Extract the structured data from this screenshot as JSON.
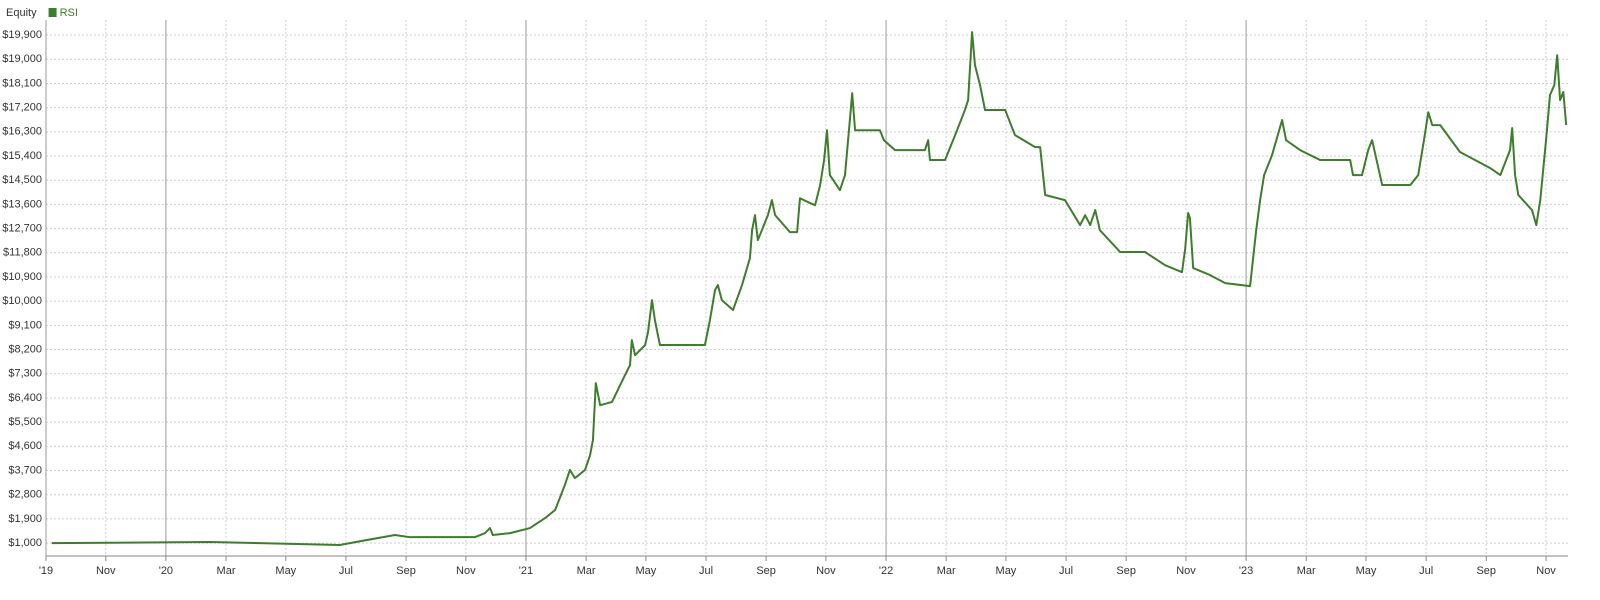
{
  "chart_data": {
    "type": "line",
    "legend_title": "Equity",
    "legend": "top-left",
    "grid": true,
    "x": [
      2019.683,
      2020.122,
      2020.483,
      2020.539,
      2020.636,
      2020.678,
      2020.858,
      2020.886,
      2020.9,
      2020.908,
      2020.956,
      2021.011,
      2021.053,
      2021.081,
      2021.108,
      2021.122,
      2021.136,
      2021.164,
      2021.178,
      2021.186,
      2021.194,
      2021.206,
      2021.239,
      2021.275,
      2021.289,
      2021.294,
      2021.303,
      2021.331,
      2021.339,
      2021.35,
      2021.358,
      2021.372,
      2021.497,
      2021.511,
      2021.525,
      2021.533,
      2021.544,
      2021.575,
      2021.6,
      2021.622,
      2021.628,
      2021.636,
      2021.644,
      2021.672,
      2021.683,
      2021.692,
      2021.733,
      2021.753,
      2021.761,
      2021.789,
      2021.803,
      2021.817,
      2021.828,
      2021.836,
      2021.844,
      2021.872,
      2021.886,
      2021.9,
      2021.906,
      2021.914,
      2021.983,
      2021.994,
      2022.025,
      2022.108,
      2022.117,
      2022.122,
      2022.164,
      2022.192,
      2022.219,
      2022.228,
      2022.239,
      2022.247,
      2022.261,
      2022.275,
      2022.331,
      2022.358,
      2022.414,
      2022.428,
      2022.442,
      2022.497,
      2022.539,
      2022.553,
      2022.567,
      2022.581,
      2022.594,
      2022.65,
      2022.719,
      2022.775,
      2022.822,
      2022.831,
      2022.839,
      2022.844,
      2022.853,
      2022.9,
      2022.942,
      2023.011,
      2023.028,
      2023.039,
      2023.05,
      2023.072,
      2023.1,
      2023.111,
      2023.15,
      2023.206,
      2023.289,
      2023.297,
      2023.322,
      2023.339,
      2023.35,
      2023.378,
      2023.456,
      2023.478,
      2023.494,
      2023.506,
      2023.517,
      2023.539,
      2023.594,
      2023.678,
      2023.706,
      2023.733,
      2023.739,
      2023.747,
      2023.756,
      2023.794,
      2023.806,
      2023.817,
      2023.833,
      2023.844,
      2023.856,
      2023.864,
      2023.872,
      2023.881,
      2023.889
    ],
    "series": [
      {
        "name": "RSI",
        "color": "#3d7d2c",
        "values": [
          1000,
          1040,
          930,
          1070,
          1300,
          1220,
          1220,
          1370,
          1560,
          1300,
          1370,
          1560,
          1930,
          2230,
          3160,
          3720,
          3420,
          3720,
          4270,
          4830,
          6950,
          6130,
          6250,
          7250,
          7620,
          8550,
          7990,
          8370,
          8850,
          10040,
          9300,
          8370,
          8370,
          9300,
          10410,
          10600,
          10040,
          9670,
          10600,
          11600,
          12640,
          13200,
          12270,
          13200,
          13760,
          13200,
          12570,
          12570,
          13830,
          13650,
          13570,
          14320,
          15250,
          16360,
          14690,
          14130,
          14690,
          16810,
          17740,
          16360,
          16360,
          15990,
          15620,
          15620,
          15990,
          15250,
          15250,
          16180,
          17110,
          17480,
          20010,
          18780,
          18040,
          17110,
          17110,
          16180,
          15730,
          15730,
          13950,
          13760,
          12830,
          13200,
          12830,
          13390,
          12640,
          11830,
          11830,
          11340,
          11080,
          11970,
          13280,
          13090,
          11230,
          10970,
          10670,
          10560,
          12640,
          13760,
          14690,
          15430,
          16740,
          15990,
          15620,
          15250,
          15250,
          14690,
          14690,
          15620,
          15990,
          14320,
          14320,
          14690,
          15990,
          17030,
          16550,
          16550,
          15550,
          14950,
          14690,
          15620,
          16440,
          14690,
          13950,
          13390,
          12830,
          13760,
          15990,
          17670,
          18040,
          19150,
          17480,
          17780,
          16550
        ]
      }
    ],
    "xlim": [
      2019.667,
      2023.894
    ],
    "ylim": [
      520,
      20460
    ],
    "xticks": [
      {
        "value": 2019.667,
        "label": "'19"
      },
      {
        "value": 2019.833,
        "label": "Nov"
      },
      {
        "value": 2020,
        "label": "'20"
      },
      {
        "value": 2020.167,
        "label": "Mar"
      },
      {
        "value": 2020.333,
        "label": "May"
      },
      {
        "value": 2020.5,
        "label": "Jul"
      },
      {
        "value": 2020.667,
        "label": "Sep"
      },
      {
        "value": 2020.833,
        "label": "Nov"
      },
      {
        "value": 2021,
        "label": "'21"
      },
      {
        "value": 2021.167,
        "label": "Mar"
      },
      {
        "value": 2021.333,
        "label": "May"
      },
      {
        "value": 2021.5,
        "label": "Jul"
      },
      {
        "value": 2021.667,
        "label": "Sep"
      },
      {
        "value": 2021.833,
        "label": "Nov"
      },
      {
        "value": 2022,
        "label": "'22"
      },
      {
        "value": 2022.167,
        "label": "Mar"
      },
      {
        "value": 2022.333,
        "label": "May"
      },
      {
        "value": 2022.5,
        "label": "Jul"
      },
      {
        "value": 2022.667,
        "label": "Sep"
      },
      {
        "value": 2022.833,
        "label": "Nov"
      },
      {
        "value": 2023,
        "label": "'23"
      },
      {
        "value": 2023.167,
        "label": "Mar"
      },
      {
        "value": 2023.333,
        "label": "May"
      },
      {
        "value": 2023.5,
        "label": "Jul"
      },
      {
        "value": 2023.667,
        "label": "Sep"
      },
      {
        "value": 2023.833,
        "label": "Nov"
      }
    ],
    "yticks": [
      {
        "value": 1000,
        "label": "$1,000"
      },
      {
        "value": 1900,
        "label": "$1,900"
      },
      {
        "value": 2800,
        "label": "$2,800"
      },
      {
        "value": 3700,
        "label": "$3,700"
      },
      {
        "value": 4600,
        "label": "$4,600"
      },
      {
        "value": 5500,
        "label": "$5,500"
      },
      {
        "value": 6400,
        "label": "$6,400"
      },
      {
        "value": 7300,
        "label": "$7,300"
      },
      {
        "value": 8200,
        "label": "$8,200"
      },
      {
        "value": 9100,
        "label": "$9,100"
      },
      {
        "value": 10000,
        "label": "$10,000"
      },
      {
        "value": 10900,
        "label": "$10,900"
      },
      {
        "value": 11800,
        "label": "$11,800"
      },
      {
        "value": 12700,
        "label": "$12,700"
      },
      {
        "value": 13600,
        "label": "$13,600"
      },
      {
        "value": 14500,
        "label": "$14,500"
      },
      {
        "value": 15400,
        "label": "$15,400"
      },
      {
        "value": 16300,
        "label": "$16,300"
      },
      {
        "value": 17200,
        "label": "$17,200"
      },
      {
        "value": 18100,
        "label": "$18,100"
      },
      {
        "value": 19000,
        "label": "$19,000"
      },
      {
        "value": 19900,
        "label": "$19,900"
      }
    ]
  }
}
